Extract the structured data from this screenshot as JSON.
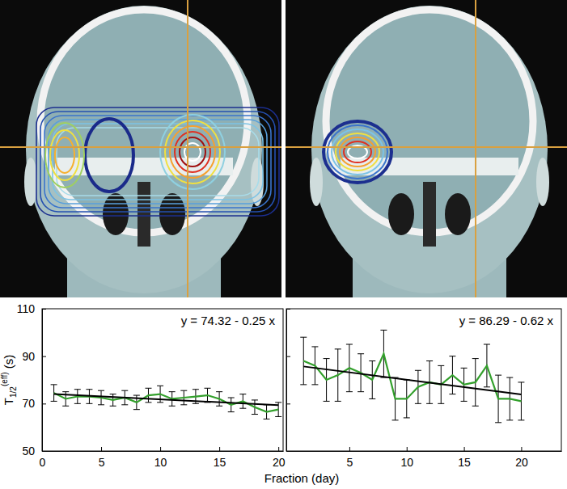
{
  "chart_data": [
    {
      "type": "line",
      "x_label": "Fraction (day)",
      "y_label": {
        "base": "T",
        "sub": "1/2",
        "sup": "(eff)",
        "unit": "(s)"
      },
      "annotation": "y = 74.32 - 0.25 x",
      "xlim": [
        0,
        20.4
      ],
      "ylim": [
        50,
        110
      ],
      "xticks": [
        0,
        5,
        10,
        15,
        20
      ],
      "yticks": [
        50,
        70,
        90,
        110
      ],
      "grid": false,
      "series": [
        {
          "color": "#33a02c",
          "line_style": "solid",
          "x": [
            1,
            2,
            3,
            4,
            5,
            6,
            7,
            8,
            9,
            10,
            11,
            12,
            13,
            14,
            15,
            16,
            17,
            18,
            19,
            20
          ],
          "values": [
            74.5,
            72,
            73,
            73,
            72.5,
            71.5,
            72.5,
            70.5,
            73.5,
            74,
            72,
            72.5,
            73,
            73.5,
            72,
            69.5,
            71,
            68.5,
            66.5,
            67.5
          ],
          "errors": [
            3.5,
            3,
            3,
            3,
            3,
            2.5,
            3,
            3,
            3,
            3.5,
            3,
            3,
            3,
            3,
            3,
            3,
            3,
            3,
            3,
            3
          ]
        },
        {
          "color": "#000000",
          "line_style": "solid",
          "x": [
            1,
            20
          ],
          "values": [
            74.07,
            69.32
          ]
        }
      ]
    },
    {
      "type": "line",
      "annotation": "y = 86.29 - 0.62 x",
      "xlim": [
        -0.5,
        23.5
      ],
      "ylim": [
        50,
        110
      ],
      "xticks": [
        5,
        10,
        15,
        20
      ],
      "yticks": [
        50,
        70,
        90,
        110
      ],
      "tick_labels": "x",
      "grid": false,
      "series": [
        {
          "color": "#33a02c",
          "line_style": "solid",
          "x": [
            1,
            2,
            3,
            4,
            5,
            6,
            7,
            8,
            9,
            10,
            11,
            12,
            13,
            14,
            15,
            16,
            17,
            18,
            19,
            20
          ],
          "values": [
            88,
            86,
            80,
            82,
            85,
            83,
            80,
            91,
            72,
            72,
            77,
            79,
            78,
            82,
            78,
            79,
            86,
            72,
            72,
            71
          ],
          "errors": [
            10,
            8,
            9,
            11,
            10,
            8,
            8,
            10,
            9,
            8,
            7,
            9,
            8,
            8,
            7,
            10,
            9,
            10,
            9,
            8
          ]
        },
        {
          "color": "#000000",
          "line_style": "solid",
          "x": [
            1,
            20
          ],
          "values": [
            85.67,
            73.89
          ]
        }
      ]
    }
  ]
}
